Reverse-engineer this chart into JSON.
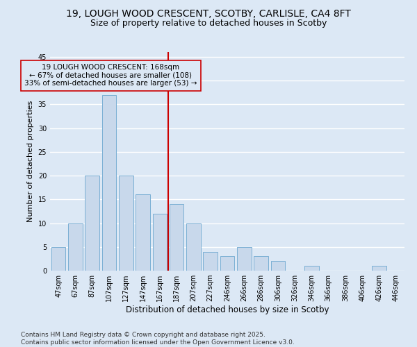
{
  "title1": "19, LOUGH WOOD CRESCENT, SCOTBY, CARLISLE, CA4 8FT",
  "title2": "Size of property relative to detached houses in Scotby",
  "xlabel": "Distribution of detached houses by size in Scotby",
  "ylabel": "Number of detached properties",
  "bar_labels": [
    "47sqm",
    "67sqm",
    "87sqm",
    "107sqm",
    "127sqm",
    "147sqm",
    "167sqm",
    "187sqm",
    "207sqm",
    "227sqm",
    "246sqm",
    "266sqm",
    "286sqm",
    "306sqm",
    "326sqm",
    "346sqm",
    "366sqm",
    "386sqm",
    "406sqm",
    "426sqm",
    "446sqm"
  ],
  "bar_values": [
    5,
    10,
    20,
    37,
    20,
    16,
    12,
    14,
    10,
    4,
    3,
    5,
    3,
    2,
    0,
    1,
    0,
    0,
    0,
    1,
    0
  ],
  "bar_color": "#c8d8eb",
  "bar_edgecolor": "#7aafd4",
  "vline_color": "#cc0000",
  "annotation_text": "19 LOUGH WOOD CRESCENT: 168sqm\n← 67% of detached houses are smaller (108)\n33% of semi-detached houses are larger (53) →",
  "annotation_box_edgecolor": "#cc0000",
  "yticks": [
    0,
    5,
    10,
    15,
    20,
    25,
    30,
    35,
    40,
    45
  ],
  "ylim": [
    0,
    46
  ],
  "footnote": "Contains HM Land Registry data © Crown copyright and database right 2025.\nContains public sector information licensed under the Open Government Licence v3.0.",
  "bg_color": "#dce8f5",
  "plot_bg_color": "#dce8f5",
  "grid_color": "#ffffff",
  "title_fontsize": 10,
  "subtitle_fontsize": 9,
  "annot_fontsize": 7.5,
  "tick_fontsize": 7,
  "xlabel_fontsize": 8.5,
  "ylabel_fontsize": 8,
  "footnote_fontsize": 6.5
}
